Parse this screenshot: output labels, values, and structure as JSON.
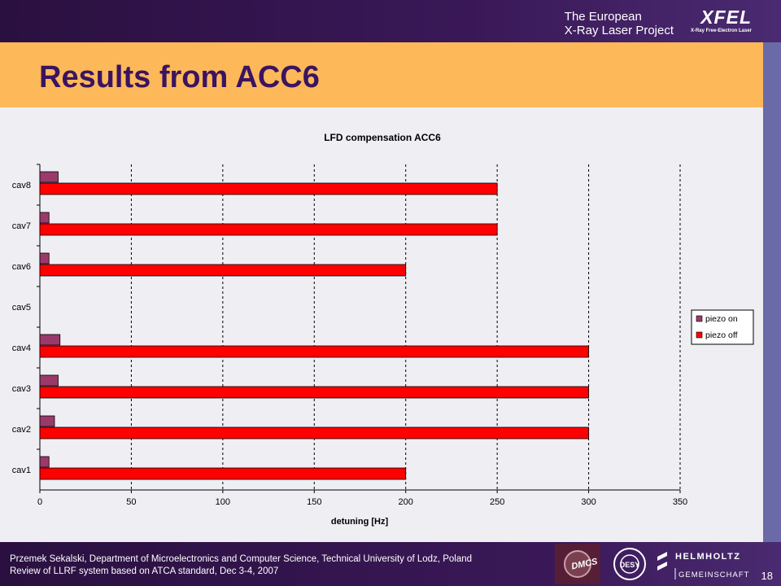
{
  "header": {
    "org_line1": "The European",
    "org_line2": "X-Ray Laser Project",
    "logo_text": "XFEL",
    "logo_subtext": "X-Ray Free-Electron Laser"
  },
  "slide": {
    "title": "Results from ACC6",
    "page_number": "18"
  },
  "footer": {
    "line1": "Przemek Sekalski, Department of Microelectronics and Computer Science, Technical University of Lodz, Poland",
    "line2": "Review of LLRF system based on ATCA standard, Dec 3-4, 2007",
    "logos": [
      "DMCS",
      "DESY",
      "HELMHOLTZ",
      "GEMEINSCHAFT"
    ]
  },
  "colors": {
    "piezo_on": "#9b3a6a",
    "piezo_off": "#ff0000",
    "title": "#3a1460",
    "title_bar": "#fdb85a",
    "header_bar": "#2a1040"
  },
  "chart_data": {
    "type": "bar",
    "orientation": "horizontal",
    "title": "LFD compensation ACC6",
    "xlabel": "detuning [Hz]",
    "ylabel": "",
    "categories": [
      "cav1",
      "cav2",
      "cav3",
      "cav4",
      "cav5",
      "cav6",
      "cav7",
      "cav8"
    ],
    "series": [
      {
        "name": "piezo on",
        "values": [
          5,
          8,
          10,
          11,
          0,
          5,
          5,
          10
        ]
      },
      {
        "name": "piezo off",
        "values": [
          200,
          300,
          300,
          300,
          0,
          200,
          250,
          250
        ]
      }
    ],
    "xlim": [
      0,
      350
    ],
    "xticks": [
      "0",
      "50",
      "100",
      "150",
      "200",
      "250",
      "300",
      "350"
    ],
    "grid": "vertical dashed",
    "legend": "right"
  }
}
